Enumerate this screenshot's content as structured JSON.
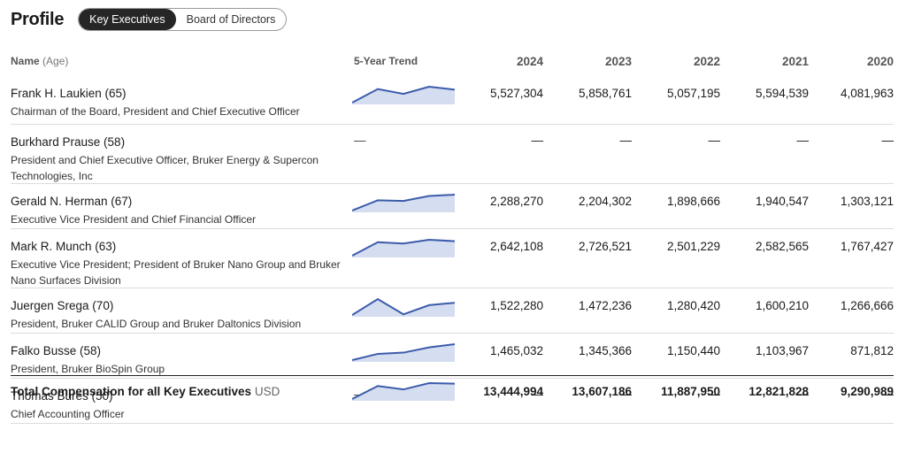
{
  "header": {
    "title": "Profile",
    "tabs": [
      {
        "label": "Key Executives"
      },
      {
        "label": "Board of Directors"
      }
    ]
  },
  "columns": {
    "name": "Name",
    "age": "(Age)",
    "trend": "5-Year Trend",
    "years": [
      "2024",
      "2023",
      "2022",
      "2021",
      "2020"
    ]
  },
  "rows": [
    {
      "name": "Frank H. Laukien (65)",
      "role": "Chairman of the Board, President and Chief Executive Officer",
      "values": [
        "5,527,304",
        "5,858,761",
        "5,057,195",
        "5,594,539",
        "4,081,963"
      ],
      "trend": [
        4081963,
        5594539,
        5057195,
        5858761,
        5527304
      ]
    },
    {
      "name": "Burkhard Prause (58)",
      "role": "President and Chief Executive Officer, Bruker Energy & Supercon Technologies, Inc",
      "values": [
        "—",
        "—",
        "—",
        "—",
        "—"
      ],
      "trend_placeholder": "—"
    },
    {
      "name": "Gerald N. Herman (67)",
      "role": "Executive Vice President and Chief Financial Officer",
      "values": [
        "2,288,270",
        "2,204,302",
        "1,898,666",
        "1,940,547",
        "1,303,121"
      ],
      "trend": [
        1303121,
        1940547,
        1898666,
        2204302,
        2288270
      ]
    },
    {
      "name": "Mark R. Munch (63)",
      "role": "Executive Vice President; President of Bruker Nano Group and Bruker Nano Surfaces Division",
      "values": [
        "2,642,108",
        "2,726,521",
        "2,501,229",
        "2,582,565",
        "1,767,427"
      ],
      "trend": [
        1767427,
        2582565,
        2501229,
        2726521,
        2642108
      ]
    },
    {
      "name": "Juergen Srega (70)",
      "role": "President, Bruker CALID Group and Bruker Daltonics Division",
      "values": [
        "1,522,280",
        "1,472,236",
        "1,280,420",
        "1,600,210",
        "1,266,666"
      ],
      "trend": [
        1266666,
        1600210,
        1280420,
        1472236,
        1522280
      ]
    },
    {
      "name": "Falko Busse (58)",
      "role": "President, Bruker BioSpin Group",
      "values": [
        "1,465,032",
        "1,345,366",
        "1,150,440",
        "1,103,967",
        "871,812"
      ],
      "trend": [
        871812,
        1103967,
        1150440,
        1345366,
        1465032
      ]
    },
    {
      "name": "Thomas Bures (50)",
      "role": "Chief Accounting Officer",
      "values": [
        "—",
        "—",
        "—",
        "—",
        "—"
      ],
      "trend_placeholder": "—"
    }
  ],
  "total": {
    "label": "Total Compensation for all Key Executives",
    "unit": "USD",
    "values": [
      "13,444,994",
      "13,607,186",
      "11,887,950",
      "12,821,828",
      "9,290,989"
    ],
    "trend": [
      9290989,
      12821828,
      11887950,
      13607186,
      13444994
    ]
  },
  "colors": {
    "spark_line": "#3b5bab",
    "spark_fill": "#d5ddf0"
  }
}
